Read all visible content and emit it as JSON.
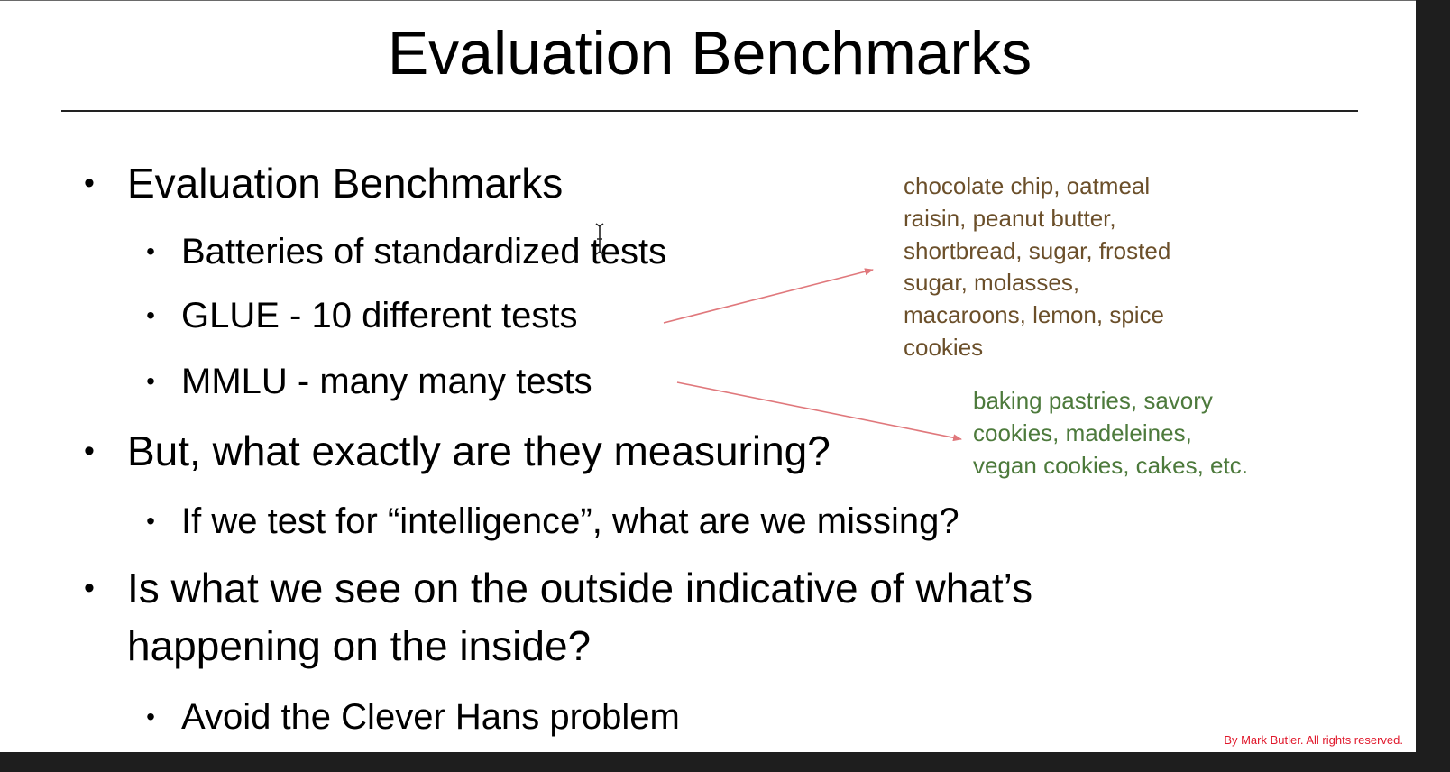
{
  "slide": {
    "title": "Evaluation Benchmarks",
    "bullets": [
      {
        "text": "Evaluation Benchmarks"
      },
      {
        "text": "Batteries of standardized tests"
      },
      {
        "text": "GLUE - 10 different tests"
      },
      {
        "text": "MMLU - many many tests"
      },
      {
        "text": "But, what exactly are they measuring?"
      },
      {
        "text": "If we test for “intelligence”, what are we missing?"
      },
      {
        "text": "Is what we see on the outside indicative of what’s",
        "text2": "happening on the inside?"
      },
      {
        "text": "Avoid the Clever Hans problem"
      }
    ],
    "bullet_glyph": "•",
    "annotations": {
      "brown_lines": [
        "chocolate chip, oatmeal",
        "raisin, peanut butter,",
        "shortbread, sugar, frosted",
        "sugar, molasses,",
        "macaroons, lemon, spice",
        "cookies"
      ],
      "green_lines": [
        "baking pastries, savory",
        "cookies, madeleines,",
        "vegan cookies, cakes, etc."
      ]
    },
    "copyright": "By Mark Butler. All rights reserved."
  },
  "colors": {
    "annotation_brown": "#6b4f2a",
    "annotation_green": "#4d7a3c",
    "arrow": "#e0787c",
    "copyright": "#e0182b"
  },
  "icons": {
    "cursor": "text-cursor-icon"
  }
}
